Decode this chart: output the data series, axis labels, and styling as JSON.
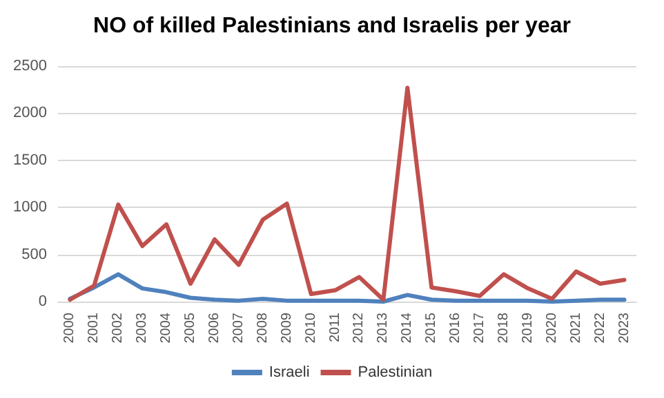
{
  "chart_data": {
    "type": "line",
    "title": "NO of killed Palestinians and Israelis per year",
    "categories": [
      "2000",
      "2001",
      "2002",
      "2003",
      "2004",
      "2005",
      "2006",
      "2007",
      "2008",
      "2009",
      "2010",
      "2011",
      "2012",
      "2013",
      "2014",
      "2015",
      "2016",
      "2017",
      "2018",
      "2019",
      "2020",
      "2021",
      "2022",
      "2023"
    ],
    "series": [
      {
        "name": "Israeli",
        "color": "#4f81bd",
        "values": [
          30,
          150,
          290,
          140,
          100,
          40,
          20,
          10,
          30,
          10,
          10,
          10,
          10,
          0,
          70,
          20,
          10,
          10,
          10,
          10,
          0,
          10,
          20,
          20
        ]
      },
      {
        "name": "Palestinian",
        "color": "#c0504d",
        "values": [
          20,
          170,
          1030,
          590,
          820,
          190,
          660,
          390,
          870,
          1040,
          80,
          120,
          260,
          20,
          2270,
          150,
          110,
          60,
          290,
          140,
          30,
          320,
          190,
          230
        ]
      }
    ],
    "ylim": [
      0,
      2500
    ],
    "yticks": [
      0,
      500,
      1000,
      1500,
      2000,
      2500
    ],
    "grid": "y",
    "legend": "bottom",
    "marker": "none",
    "line_style": "solid"
  }
}
